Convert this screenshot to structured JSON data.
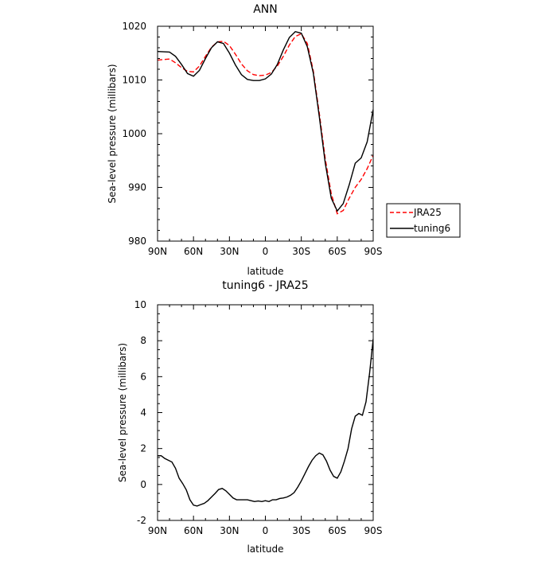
{
  "chart_data": [
    {
      "type": "line",
      "title": "ANN",
      "xlabel": "latitude",
      "ylabel": "Sea-level pressure (millibars)",
      "xlim": [
        -90,
        90
      ],
      "ylim": [
        980,
        1020
      ],
      "x_tick_values": [
        -90,
        -60,
        -30,
        0,
        30,
        60,
        90
      ],
      "x_tick_labels": [
        "90N",
        "60N",
        "30N",
        "0",
        "30S",
        "60S",
        "90S"
      ],
      "y_tick_values": [
        980,
        990,
        1000,
        1010,
        1020
      ],
      "y_tick_labels": [
        "980",
        "990",
        "1000",
        "1010",
        "1020"
      ],
      "legend_position": "right",
      "series": [
        {
          "name": "JRA25",
          "color": "#ff0000",
          "dash": "dashed",
          "x": [
            -90,
            -80,
            -75,
            -70,
            -65,
            -60,
            -55,
            -50,
            -45,
            -40,
            -35,
            -30,
            -25,
            -20,
            -15,
            -10,
            -5,
            0,
            5,
            10,
            15,
            20,
            25,
            30,
            35,
            40,
            45,
            50,
            55,
            60,
            65,
            70,
            75,
            80,
            85,
            90
          ],
          "y": [
            1013.7,
            1013.9,
            1013.2,
            1012.3,
            1011.6,
            1011.5,
            1012.6,
            1014.4,
            1016.1,
            1017.1,
            1017.2,
            1016.4,
            1014.8,
            1013.0,
            1011.7,
            1011.0,
            1010.8,
            1010.9,
            1011.4,
            1012.6,
            1014.4,
            1016.5,
            1018.1,
            1018.6,
            1016.8,
            1011.7,
            1003.8,
            995.3,
            988.8,
            985.1,
            985.7,
            988.0,
            990.0,
            991.5,
            993.5,
            996.0
          ]
        },
        {
          "name": "tuning6",
          "color": "#000000",
          "dash": "solid",
          "x": [
            -90,
            -80,
            -75,
            -70,
            -65,
            -60,
            -55,
            -50,
            -45,
            -40,
            -35,
            -30,
            -25,
            -20,
            -15,
            -10,
            -5,
            0,
            5,
            10,
            15,
            20,
            25,
            30,
            35,
            40,
            45,
            50,
            55,
            60,
            65,
            70,
            75,
            80,
            85,
            90
          ],
          "y": [
            1015.3,
            1015.2,
            1014.4,
            1012.9,
            1011.2,
            1010.7,
            1011.8,
            1014.0,
            1016.0,
            1017.1,
            1016.8,
            1015.0,
            1012.8,
            1011.0,
            1010.1,
            1009.9,
            1009.9,
            1010.2,
            1011.1,
            1012.9,
            1015.6,
            1017.9,
            1019.0,
            1018.7,
            1016.2,
            1011.3,
            1003.2,
            994.5,
            988.0,
            985.6,
            987.0,
            990.5,
            994.5,
            995.5,
            998.5,
            1004.5
          ]
        }
      ]
    },
    {
      "type": "line",
      "title": "tuning6 - JRA25",
      "xlabel": "latitude",
      "ylabel": "Sea-level pressure (millibars)",
      "xlim": [
        -90,
        90
      ],
      "ylim": [
        -2,
        10
      ],
      "x_tick_values": [
        -90,
        -60,
        -30,
        0,
        30,
        60,
        90
      ],
      "x_tick_labels": [
        "90N",
        "60N",
        "30N",
        "0",
        "30S",
        "60S",
        "90S"
      ],
      "y_tick_values": [
        -2,
        0,
        2,
        4,
        6,
        8,
        10
      ],
      "y_tick_labels": [
        "-2",
        "0",
        "2",
        "4",
        "6",
        "8",
        "10"
      ],
      "series": [
        {
          "color": "#000000",
          "dash": "solid",
          "x": [
            -90,
            -87,
            -84,
            -81,
            -78,
            -75,
            -72,
            -69,
            -66,
            -63,
            -60,
            -57,
            -54,
            -51,
            -48,
            -45,
            -42,
            -39,
            -36,
            -33,
            -30,
            -27,
            -24,
            -21,
            -18,
            -15,
            -12,
            -9,
            -6,
            -3,
            0,
            3,
            6,
            9,
            12,
            15,
            18,
            21,
            24,
            27,
            30,
            33,
            36,
            39,
            42,
            45,
            48,
            51,
            54,
            57,
            60,
            63,
            66,
            69,
            72,
            75,
            78,
            81,
            84,
            87,
            90
          ],
          "y": [
            1.6,
            1.6,
            1.45,
            1.35,
            1.25,
            0.9,
            0.35,
            0.05,
            -0.3,
            -0.85,
            -1.15,
            -1.2,
            -1.12,
            -1.05,
            -0.9,
            -0.7,
            -0.5,
            -0.28,
            -0.22,
            -0.35,
            -0.55,
            -0.75,
            -0.85,
            -0.85,
            -0.85,
            -0.85,
            -0.9,
            -0.95,
            -0.92,
            -0.95,
            -0.9,
            -0.95,
            -0.85,
            -0.85,
            -0.78,
            -0.75,
            -0.7,
            -0.6,
            -0.45,
            -0.15,
            0.2,
            0.6,
            1.0,
            1.35,
            1.6,
            1.75,
            1.65,
            1.3,
            0.8,
            0.45,
            0.35,
            0.7,
            1.3,
            2.0,
            3.1,
            3.8,
            3.95,
            3.85,
            4.6,
            6.2,
            8.1
          ]
        }
      ]
    }
  ]
}
